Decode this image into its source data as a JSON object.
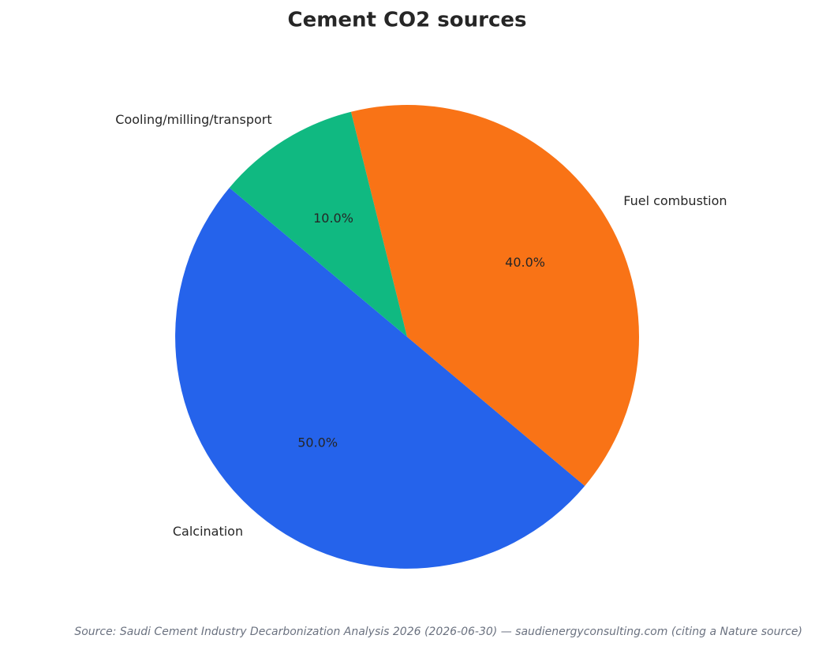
{
  "chart_data": {
    "type": "pie",
    "title": "Cement CO2 sources",
    "categories": [
      "Calcination",
      "Fuel combustion",
      "Cooling/milling/transport"
    ],
    "values": [
      50,
      40,
      10
    ],
    "value_labels": [
      "50.0%",
      "40.0%",
      "10.0%"
    ],
    "colors": [
      "#2563eb",
      "#f97316",
      "#10b981"
    ],
    "start_angle": 140,
    "source": "Source: Saudi Cement Industry Decarbonization Analysis 2026 (2026-06-30) — saudienergyconsulting.com (citing a Nature source)"
  }
}
